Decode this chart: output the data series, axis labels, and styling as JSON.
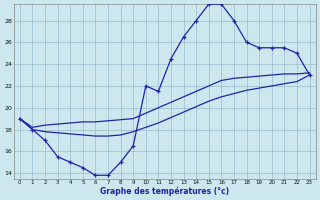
{
  "xlabel": "Graphe des températures (°c)",
  "bg_color": "#cce8ee",
  "grid_color": "#99bbcc",
  "line_color": "#2222aa",
  "xlim_min": -0.5,
  "xlim_max": 23.5,
  "ylim_min": 13.5,
  "ylim_max": 29.5,
  "xticks": [
    0,
    1,
    2,
    3,
    4,
    5,
    6,
    7,
    8,
    9,
    10,
    11,
    12,
    13,
    14,
    15,
    16,
    17,
    18,
    19,
    20,
    21,
    22,
    23
  ],
  "yticks": [
    14,
    16,
    18,
    20,
    22,
    24,
    26,
    28
  ],
  "curve1_x": [
    0,
    1,
    2,
    3,
    4,
    5,
    6,
    7,
    8,
    9,
    10,
    11,
    12,
    13,
    14,
    15,
    16,
    17,
    18,
    19,
    20,
    21,
    22,
    23
  ],
  "curve1_y": [
    19.0,
    18.0,
    17.0,
    15.5,
    15.0,
    14.5,
    13.8,
    13.8,
    15.0,
    16.5,
    22.0,
    21.5,
    24.5,
    26.5,
    28.0,
    29.5,
    29.5,
    28.0,
    26.0,
    25.5,
    25.5,
    25.5,
    25.0,
    23.0
  ],
  "curve2_x": [
    0,
    1,
    2,
    3,
    4,
    5,
    6,
    7,
    8,
    9,
    10,
    11,
    12,
    13,
    14,
    15,
    16,
    17,
    18,
    19,
    20,
    21,
    22,
    23
  ],
  "curve2_y": [
    19.0,
    18.2,
    18.4,
    18.5,
    18.6,
    18.7,
    18.7,
    18.8,
    18.9,
    19.0,
    19.5,
    20.0,
    20.5,
    21.0,
    21.5,
    22.0,
    22.5,
    22.7,
    22.8,
    22.9,
    23.0,
    23.1,
    23.1,
    23.2
  ],
  "curve3_x": [
    0,
    1,
    2,
    3,
    4,
    5,
    6,
    7,
    8,
    9,
    10,
    11,
    12,
    13,
    14,
    15,
    16,
    17,
    18,
    19,
    20,
    21,
    22,
    23
  ],
  "curve3_y": [
    19.0,
    18.0,
    17.8,
    17.7,
    17.6,
    17.5,
    17.4,
    17.4,
    17.5,
    17.8,
    18.2,
    18.6,
    19.1,
    19.6,
    20.1,
    20.6,
    21.0,
    21.3,
    21.6,
    21.8,
    22.0,
    22.2,
    22.4,
    23.0
  ]
}
